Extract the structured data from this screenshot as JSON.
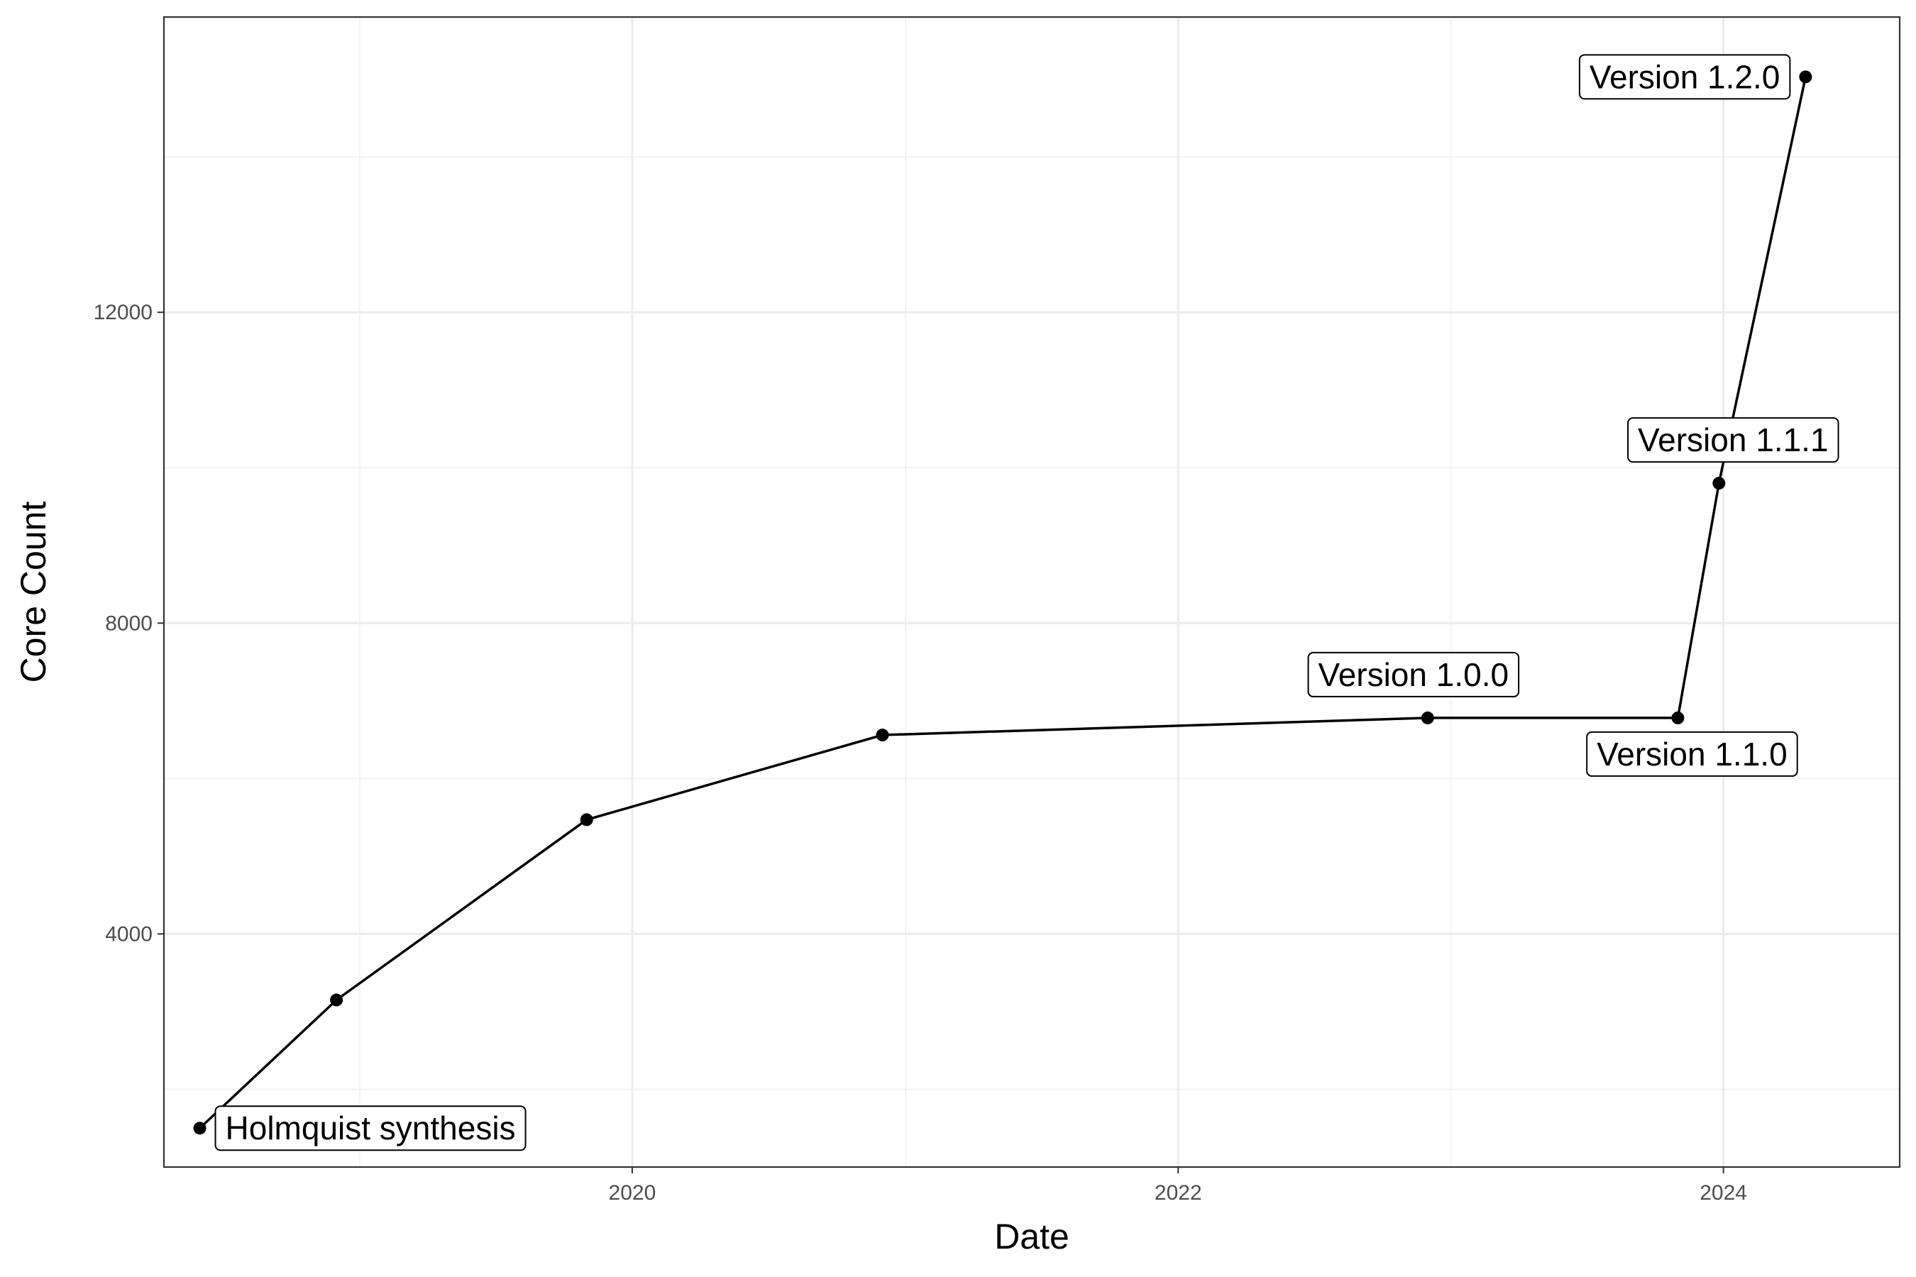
{
  "chart_data": {
    "type": "line",
    "title": "",
    "xlabel": "Date",
    "ylabel": "Core Count",
    "x_ticks": [
      "2020",
      "2022",
      "2024"
    ],
    "y_ticks": [
      "4000",
      "8000",
      "12000"
    ],
    "xlim": [
      "2018-04-14",
      "2024-08-24"
    ],
    "ylim": [
      1000,
      15800
    ],
    "grid": true,
    "legend": "none",
    "series": [
      {
        "points": [
          {
            "x": "2018-06-01",
            "y": 1500
          },
          {
            "x": "2018-12-01",
            "y": 3150
          },
          {
            "x": "2019-11-01",
            "y": 5470
          },
          {
            "x": "2020-12-01",
            "y": 6560
          },
          {
            "x": "2022-12-01",
            "y": 6780
          },
          {
            "x": "2023-11-01",
            "y": 6780
          },
          {
            "x": "2023-12-26",
            "y": 9800
          },
          {
            "x": "2024-04-20",
            "y": 15030
          }
        ]
      }
    ],
    "annotations": [
      {
        "text": "Holmquist synthesis",
        "point": 0,
        "anchor": "start",
        "dx": 1,
        "dy": 0
      },
      {
        "text": "Version 1.0.0",
        "point": 4,
        "anchor": "middle",
        "dx": -1,
        "dy": -1
      },
      {
        "text": "Version 1.1.0",
        "point": 5,
        "anchor": "middle",
        "dx": 1,
        "dy": 1
      },
      {
        "text": "Version 1.1.1",
        "point": 6,
        "anchor": "middle",
        "dx": 1,
        "dy": -1
      },
      {
        "text": "Version 1.2.0",
        "point": 7,
        "anchor": "end",
        "dx": -1,
        "dy": 0
      }
    ],
    "colors": {
      "line": "#000000",
      "grid_major": "#ebebeb",
      "grid_minor": "#f3f3f3",
      "panel_border": "#333333"
    }
  }
}
